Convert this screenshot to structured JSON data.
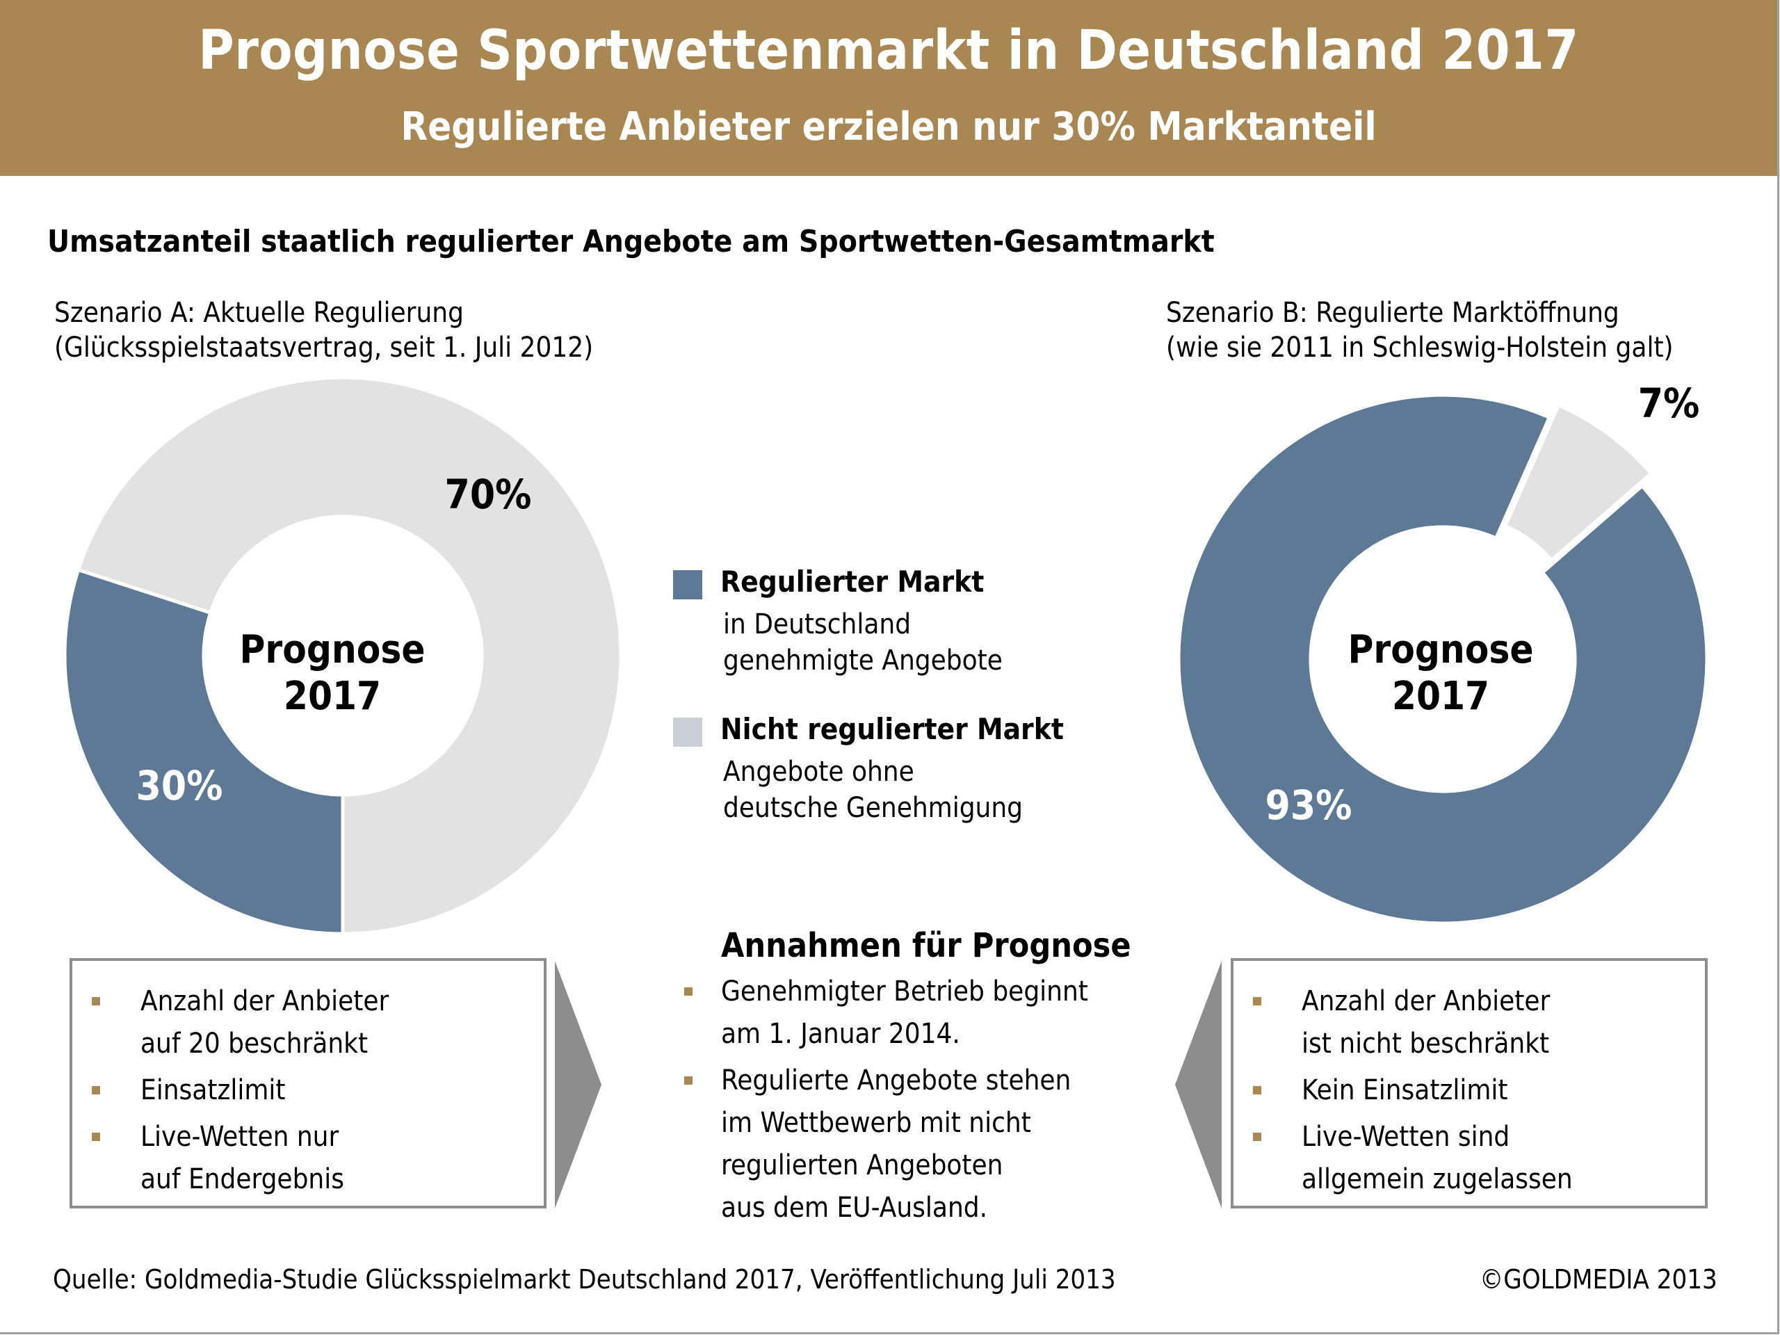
{
  "header": {
    "title": "Prognose Sportwettenmarkt in Deutschland 2017",
    "subtitle": "Regulierte Anbieter erzielen nur 30% Marktanteil"
  },
  "section_heading": "Umsatzanteil staatlich regulierter Angebote am Sportwetten-Gesamtmarkt",
  "colors": {
    "brand_gold": "#a98753",
    "regulated": "#5d7996",
    "unregulated_slice": "#e2e2e2",
    "unregulated_legend": "#c9d1d7",
    "arrow_gray": "#8d8d8d"
  },
  "scenario_a": {
    "title": "Szenario A: Aktuelle Regulierung",
    "subtitle": "(Glücksspielstaatsvertrag, seit 1. Juli 2012)",
    "center_label_1": "Prognose",
    "center_label_2": "2017",
    "label_regulated": "30%",
    "label_unregulated": "70%",
    "assumptions": [
      [
        "Anzahl der Anbieter",
        "auf 20 beschränkt"
      ],
      [
        "Einsatzlimit"
      ],
      [
        "Live-Wetten nur",
        "auf Endergebnis"
      ]
    ]
  },
  "scenario_b": {
    "title": "Szenario B: Regulierte Marktöffnung",
    "subtitle": "(wie sie 2011 in Schleswig-Holstein galt)",
    "center_label_1": "Prognose",
    "center_label_2": "2017",
    "label_regulated": "93%",
    "label_unregulated": "7%",
    "assumptions": [
      [
        "Anzahl der Anbieter",
        "ist nicht beschränkt"
      ],
      [
        "Kein Einsatzlimit"
      ],
      [
        "Live-Wetten sind",
        "allgemein zugelassen"
      ]
    ]
  },
  "legend": {
    "regulated_label": "Regulierter Markt",
    "regulated_desc_1": "in Deutschland",
    "regulated_desc_2": "genehmigte Angebote",
    "unregulated_label": "Nicht regulierter Markt",
    "unregulated_desc_1": "Angebote ohne",
    "unregulated_desc_2": "deutsche Genehmigung"
  },
  "annahmen": {
    "heading": "Annahmen für Prognose",
    "items": [
      [
        "Genehmigter Betrieb beginnt",
        "am 1. Januar 2014."
      ],
      [
        "Regulierte Angebote stehen",
        "im Wettbewerb mit nicht",
        "regulierten Angeboten",
        "aus dem EU-Ausland."
      ]
    ]
  },
  "footer": {
    "source_label": "Quelle:",
    "source_text": " Goldmedia-Studie Glücksspielmarkt Deutschland 2017, Veröffentlichung Juli 2013",
    "copyright": "©GOLDMEDIA 2013"
  },
  "chart_data": [
    {
      "type": "pie",
      "title": "Szenario A: Aktuelle Regulierung",
      "subtitle": "(Glücksspielstaatsvertrag, seit 1. Juli 2012)",
      "center_text": "Prognose 2017",
      "categories": [
        "Regulierter Markt",
        "Nicht regulierter Markt"
      ],
      "values": [
        30,
        70
      ],
      "unit": "%",
      "data_labels": [
        "30%",
        "70%"
      ],
      "donut": true,
      "exploded": []
    },
    {
      "type": "pie",
      "title": "Szenario B: Regulierte Marktöffnung",
      "subtitle": "(wie sie 2011 in Schleswig-Holstein galt)",
      "center_text": "Prognose 2017",
      "categories": [
        "Regulierter Markt",
        "Nicht regulierter Markt"
      ],
      "values": [
        93,
        7
      ],
      "unit": "%",
      "data_labels": [
        "93%",
        "7%"
      ],
      "donut": true,
      "exploded": [
        "Nicht regulierter Markt"
      ]
    }
  ]
}
